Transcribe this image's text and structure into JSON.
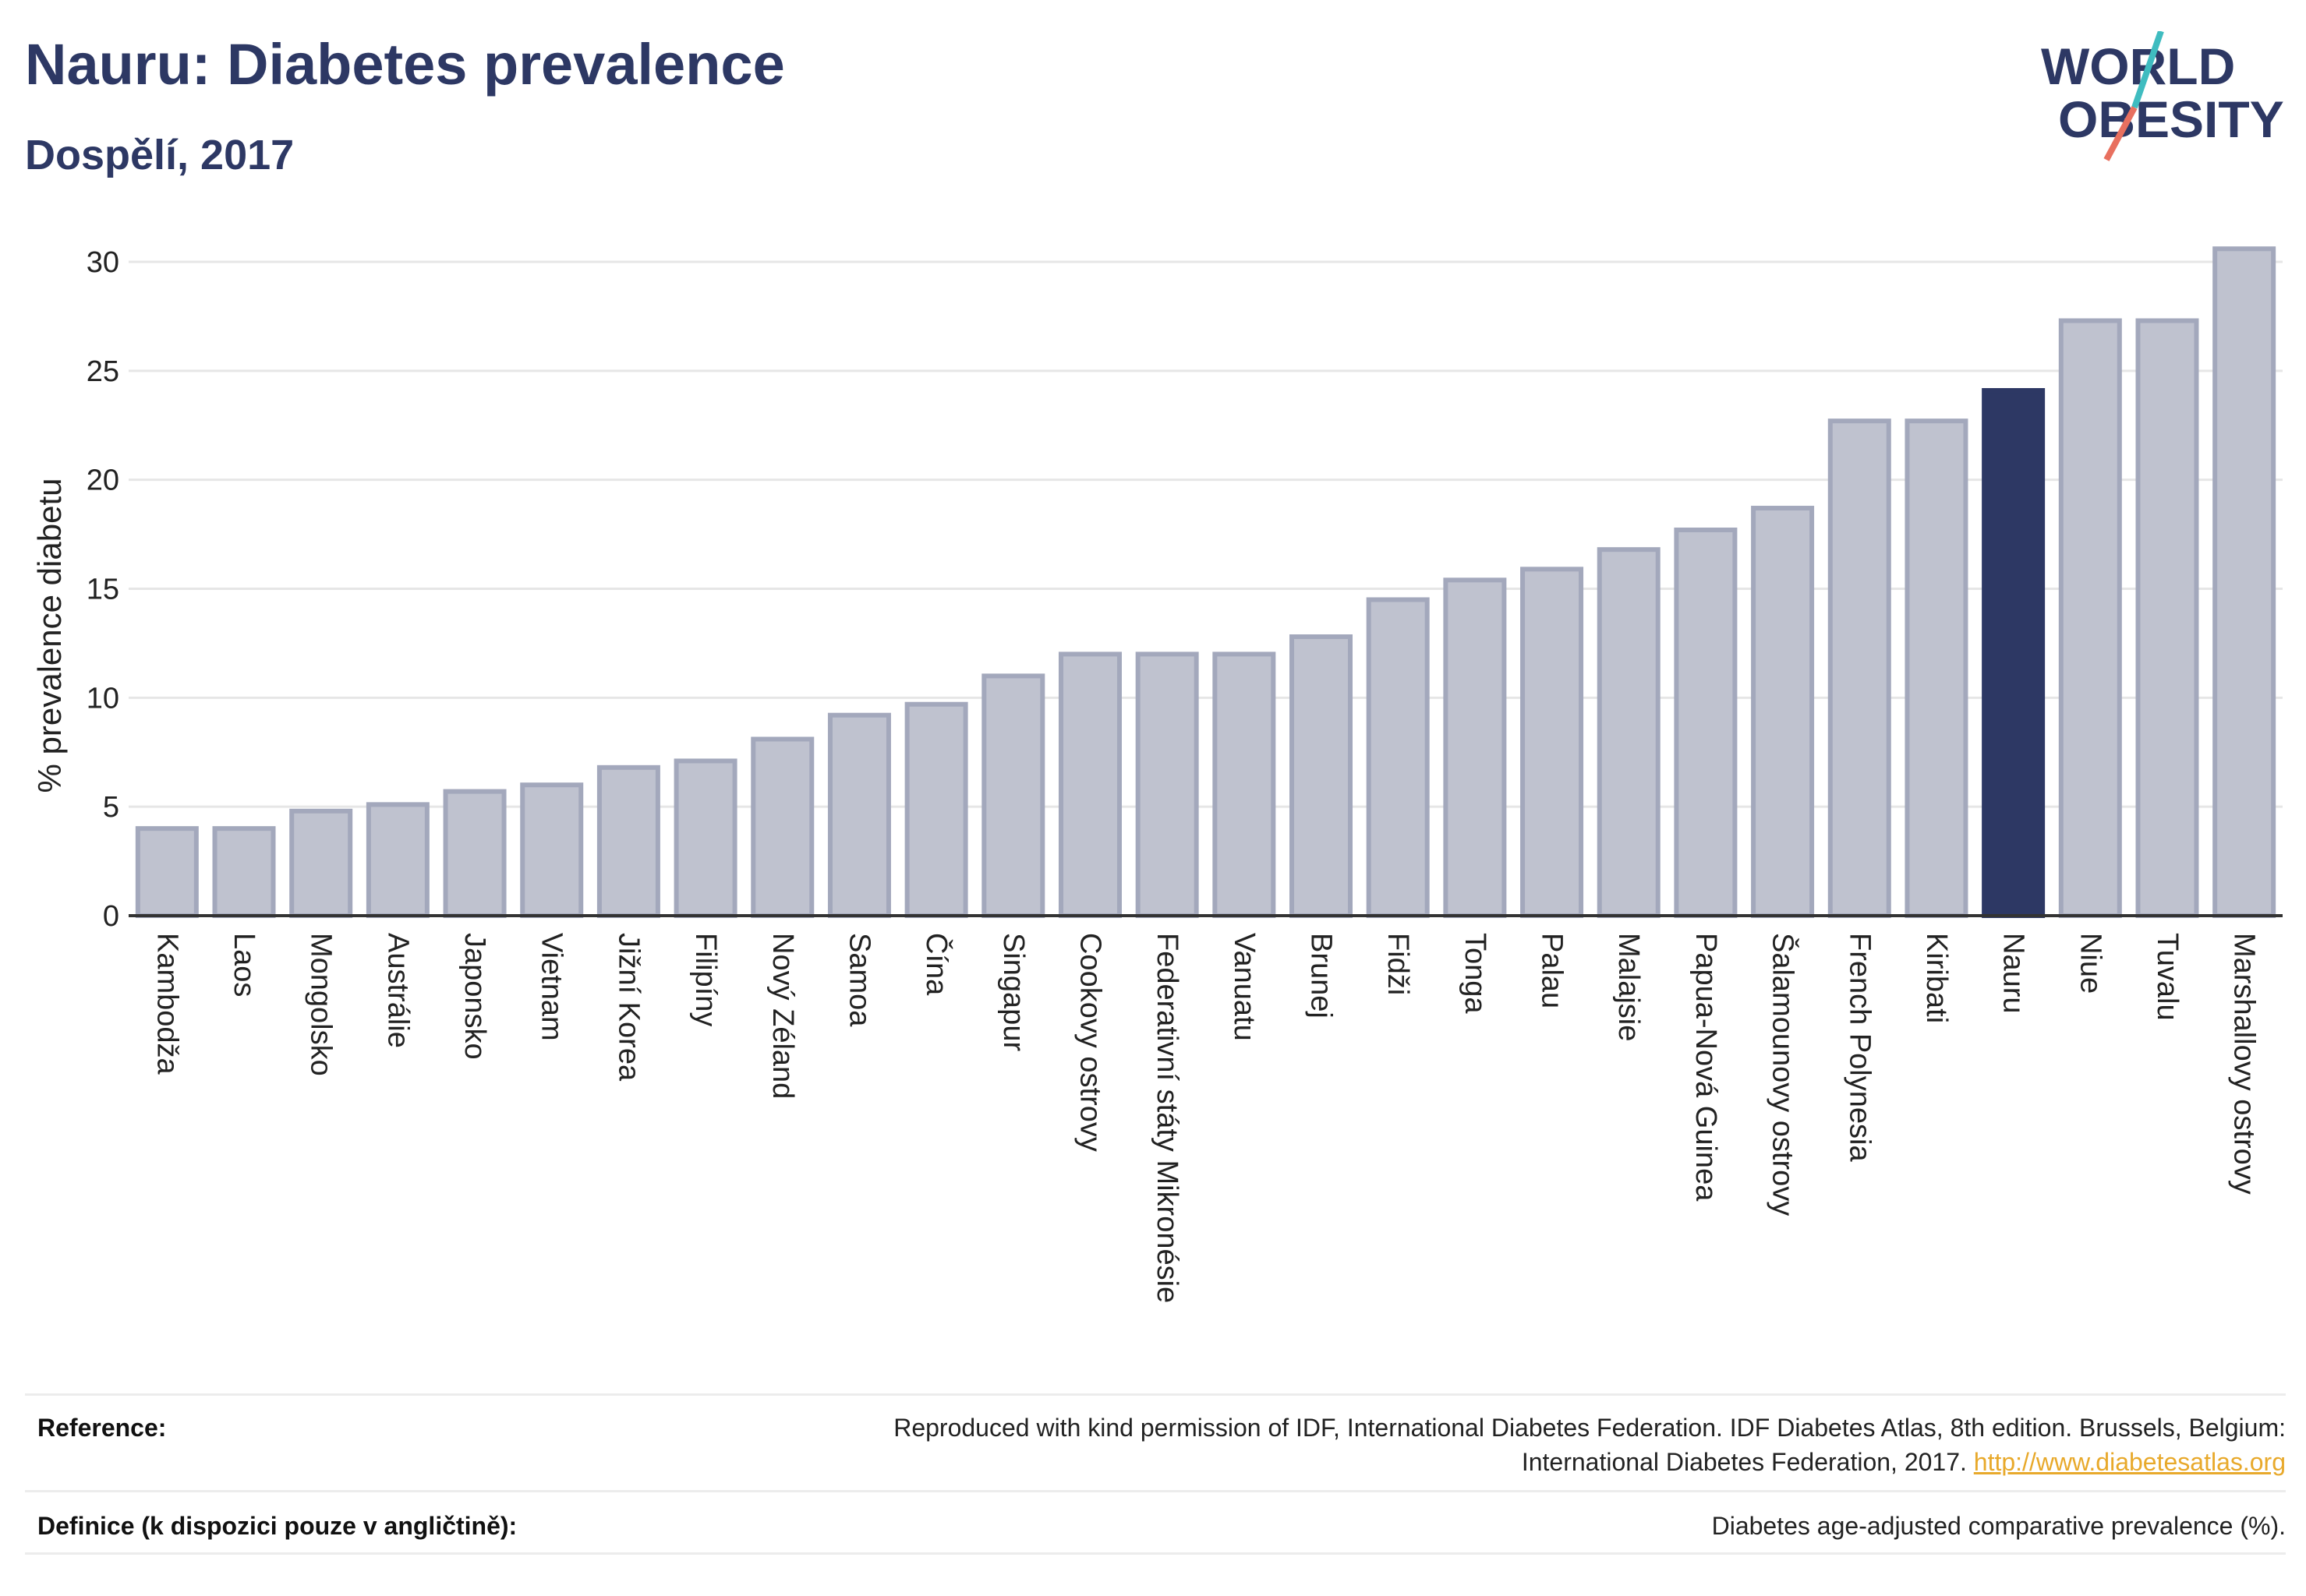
{
  "header": {
    "title": "Nauru: Diabetes prevalence",
    "subtitle": "Dospělí, 2017",
    "logo_line1": "WORLD",
    "logo_line2": "OBESITY"
  },
  "colors": {
    "highlight": "#2d3864",
    "bar_fill": "#bfc2cf",
    "bar_stroke": "#a3a8bc",
    "logo_slash_top": "#3fbcc0",
    "logo_slash_bottom": "#e8705f"
  },
  "chart_data": {
    "type": "bar",
    "ylabel": "% prevalence diabetu",
    "xlabel": "",
    "ylim": [
      0,
      32
    ],
    "yticks": [
      0,
      5,
      10,
      15,
      20,
      25,
      30
    ],
    "grid": true,
    "highlight_category": "Nauru",
    "categories": [
      "Kambodža",
      "Laos",
      "Mongolsko",
      "Austrálie",
      "Japonsko",
      "Vietnam",
      "Jižní Korea",
      "Filipíny",
      "Nový Zéland",
      "Samoa",
      "Čína",
      "Singapur",
      "Cookovy ostrovy",
      "Federativní státy Mikronésie",
      "Vanuatu",
      "Brunej",
      "Fidži",
      "Tonga",
      "Palau",
      "Malajsie",
      "Papua-Nová Guinea",
      "Šalamounovy ostrovy",
      "French Polynesia",
      "Kiribati",
      "Nauru",
      "Niue",
      "Tuvalu",
      "Marshallovy ostrovy"
    ],
    "values": [
      4.0,
      4.0,
      4.8,
      5.1,
      5.7,
      6.0,
      6.8,
      7.1,
      8.1,
      9.2,
      9.7,
      11.0,
      12.0,
      12.0,
      12.0,
      12.8,
      14.5,
      15.4,
      15.9,
      16.8,
      17.7,
      18.7,
      22.7,
      22.7,
      24.1,
      27.3,
      27.3,
      30.6
    ]
  },
  "footer": {
    "reference_label": "Reference:",
    "reference_line1": "Reproduced with kind permission of IDF, International Diabetes Federation. IDF Diabetes Atlas, 8th edition. Brussels, Belgium:",
    "reference_line2": "International Diabetes Federation, 2017.",
    "reference_link": "http://www.diabetesatlas.org",
    "definition_label": "Definice (k dispozici pouze v angličtině):",
    "definition_text": "Diabetes age-adjusted comparative prevalence (%)."
  }
}
